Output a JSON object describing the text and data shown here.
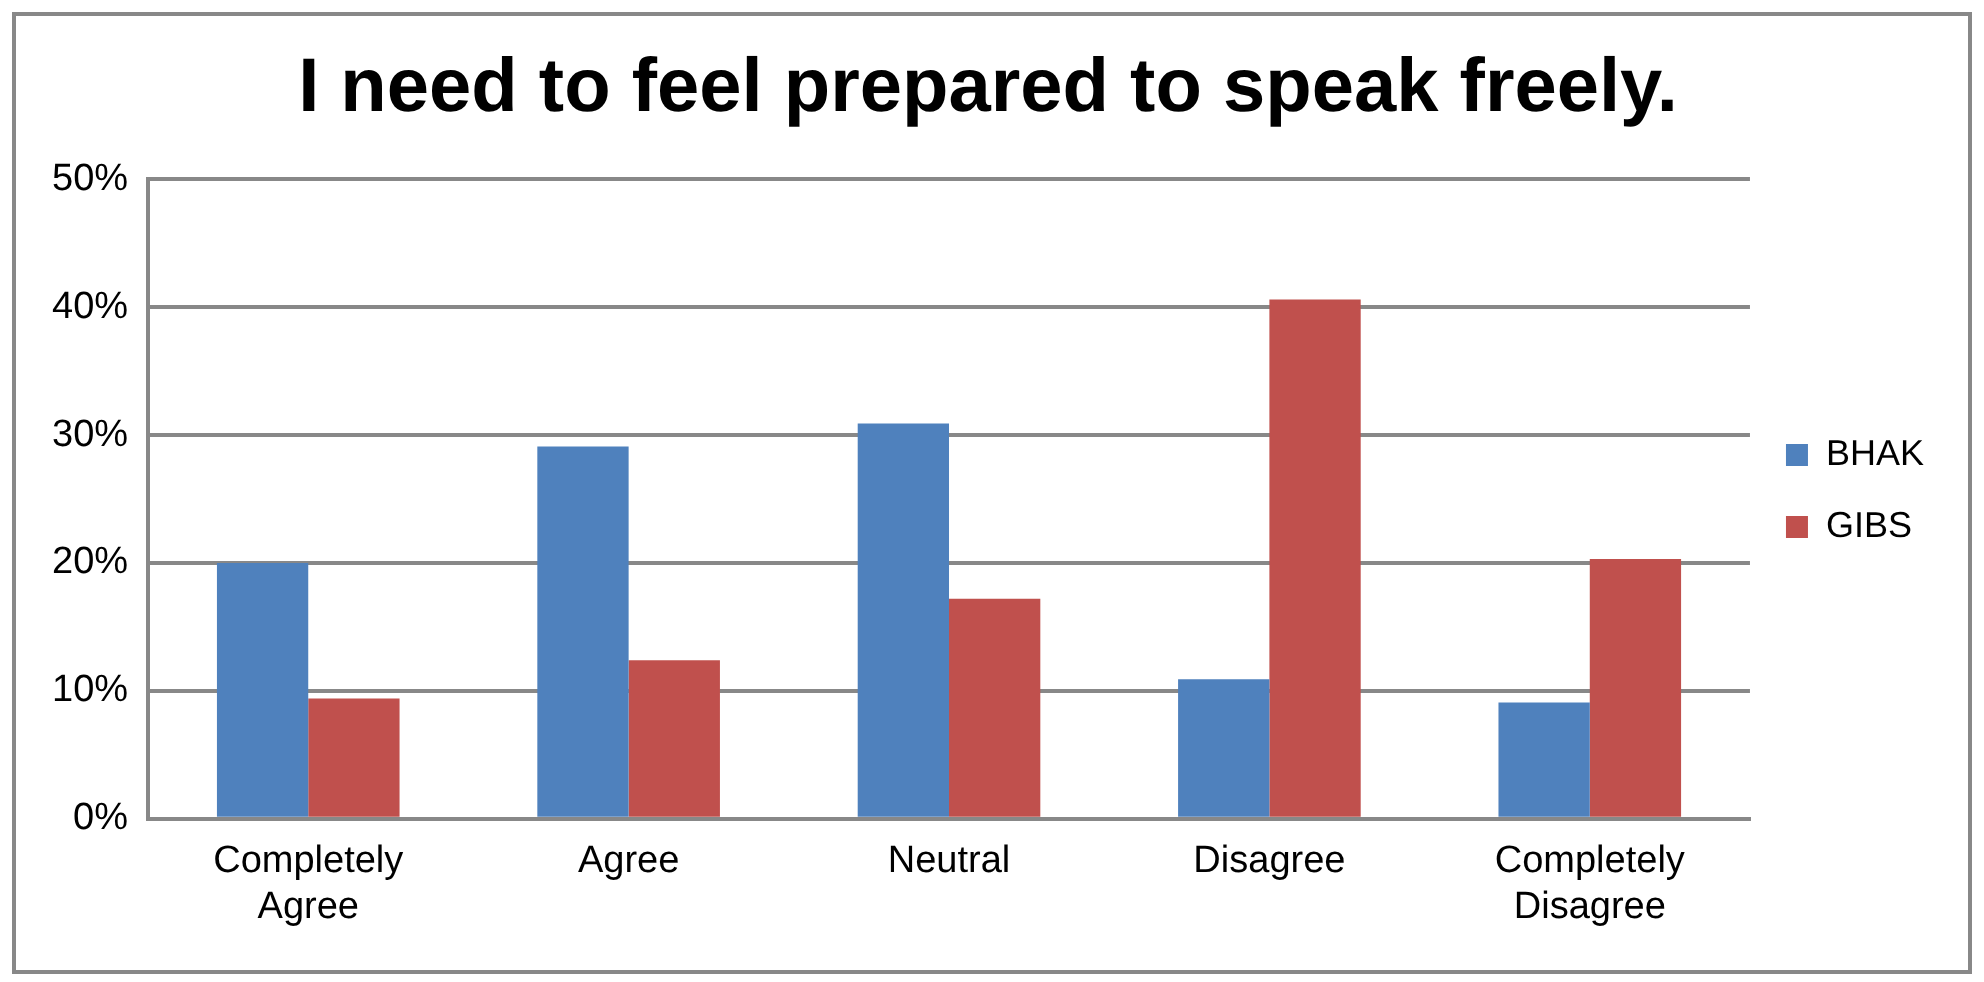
{
  "chart_data": {
    "type": "bar",
    "title": "I need to feel prepared to speak freely.",
    "categories": [
      "Completely Agree",
      "Agree",
      "Neutral",
      "Disagree",
      "Completely Disagree"
    ],
    "series": [
      {
        "name": "BHAK",
        "color": "#4f81bd",
        "values": [
          20.0,
          29.1,
          30.9,
          10.9,
          9.1
        ]
      },
      {
        "name": "GIBS",
        "color": "#c0504d",
        "values": [
          9.4,
          12.4,
          17.2,
          40.6,
          20.3
        ]
      }
    ],
    "ylim": [
      0,
      50
    ],
    "yticks": [
      {
        "value": 0,
        "label": "0%"
      },
      {
        "value": 10,
        "label": "10%"
      },
      {
        "value": 20,
        "label": "20%"
      },
      {
        "value": 30,
        "label": "30%"
      },
      {
        "value": 40,
        "label": "40%"
      },
      {
        "value": 50,
        "label": "50%"
      }
    ],
    "grid": "y",
    "legend": "right"
  }
}
